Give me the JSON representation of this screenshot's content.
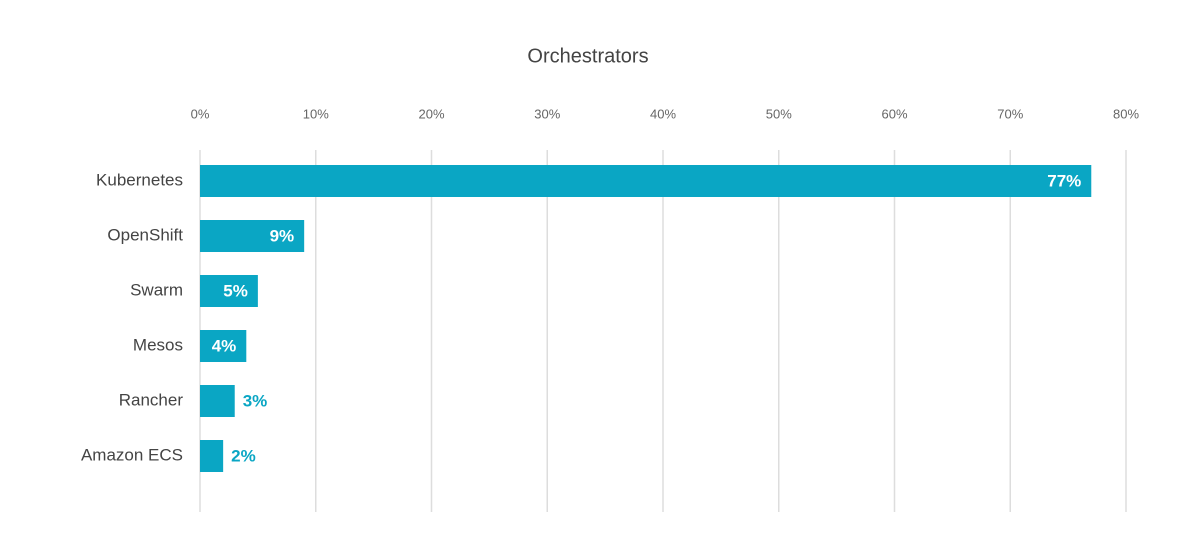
{
  "chart_data": {
    "type": "bar",
    "orientation": "horizontal",
    "title": "Orchestrators",
    "categories": [
      "Kubernetes",
      "OpenShift",
      "Swarm",
      "Mesos",
      "Rancher",
      "Amazon ECS"
    ],
    "values": [
      77,
      9,
      5,
      4,
      3,
      2
    ],
    "value_labels": [
      "77%",
      "9%",
      "5%",
      "4%",
      "3%",
      "2%"
    ],
    "color": "#0aa6c4",
    "xlim": [
      0,
      80
    ],
    "xticks": [
      {
        "value": 0,
        "label": "0%"
      },
      {
        "value": 10,
        "label": "10%"
      },
      {
        "value": 20,
        "label": "20%"
      },
      {
        "value": 30,
        "label": "30%"
      },
      {
        "value": 40,
        "label": "40%"
      },
      {
        "value": 50,
        "label": "50%"
      },
      {
        "value": 60,
        "label": "60%"
      },
      {
        "value": 70,
        "label": "70%"
      },
      {
        "value": 80,
        "label": "80%"
      }
    ],
    "grid": true
  }
}
